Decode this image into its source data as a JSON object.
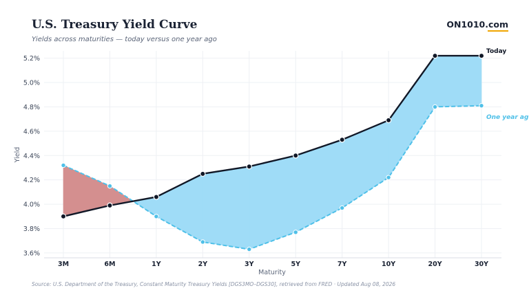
{
  "header": {
    "title": "U.S. Treasury Yield Curve",
    "subtitle": "Yields across maturities — today versus one year ago",
    "brand": "ON1010.com"
  },
  "footer": {
    "source": "Source: U.S. Department of the Treasury, Constant Maturity Treasury Yields [DGS3MO–DGS30], retrieved from FRED · Updated Aug 08, 2026"
  },
  "colors": {
    "today_line": "#111827",
    "year_ago_line": "#4fc0e8",
    "fill_normal": "#9fdcf7",
    "fill_inverted": "#d48f8f",
    "grid": "#eef0f4"
  },
  "chart_data": {
    "type": "line",
    "categories": [
      "3M",
      "6M",
      "1Y",
      "2Y",
      "3Y",
      "5Y",
      "7Y",
      "10Y",
      "20Y",
      "30Y"
    ],
    "series": [
      {
        "name": "Today",
        "values": [
          3.9,
          3.99,
          4.06,
          4.25,
          4.31,
          4.4,
          4.53,
          4.69,
          5.22,
          5.22
        ]
      },
      {
        "name": "One year ag",
        "values": [
          4.32,
          4.15,
          3.9,
          3.69,
          3.63,
          3.77,
          3.97,
          4.22,
          4.8,
          4.81
        ]
      }
    ],
    "title": "U.S. Treasury Yield Curve",
    "subtitle": "Yields across maturities — today versus one year ago",
    "xlabel": "Maturity",
    "ylabel": "Yield",
    "ylim": [
      3.56,
      5.26
    ],
    "yticks": [
      "3.6%",
      "3.8%",
      "4.0%",
      "4.2%",
      "4.4%",
      "4.6%",
      "4.8%",
      "5.0%",
      "5.2%"
    ],
    "ytick_values": [
      3.6,
      3.8,
      4.0,
      4.2,
      4.4,
      4.6,
      4.8,
      5.0,
      5.2
    ],
    "grid": true,
    "legend": "inline-right"
  }
}
